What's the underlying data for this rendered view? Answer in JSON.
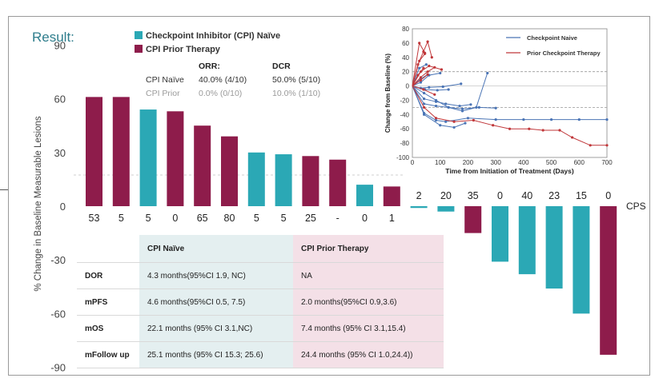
{
  "title": "Result:",
  "legend": [
    {
      "label": "Checkpoint Inhibitor (CPI) Naïve",
      "color": "#2ba8b5"
    },
    {
      "label": "CPI Prior Therapy",
      "color": "#8e1c4b"
    }
  ],
  "response_table": {
    "headers": [
      "ORR:",
      "DCR"
    ],
    "rows": [
      {
        "label": "CPI Naïve",
        "orr": "40.0% (4/10)",
        "dcr": "50.0% (5/10)"
      },
      {
        "label": "CPI Prior",
        "orr": "0.0% (0/10)",
        "dcr": "10.0% (1/10)"
      }
    ]
  },
  "summary_table": {
    "headers": [
      "CPI Naïve",
      "CPI Prior Therapy"
    ],
    "rows": [
      {
        "label": "DOR",
        "naive": "4.3 months(95%CI 1.9, NC)",
        "prior": "NA"
      },
      {
        "label": "mPFS",
        "naive": "4.6 months(95%CI 0.5, 7.5)",
        "prior": "2.0 months(95%CI 0.9,3.6)"
      },
      {
        "label": "mOS",
        "naive": "22.1 months (95% CI 3.1,NC)",
        "prior": "7.4 months (95% CI 3.1,15.4)"
      },
      {
        "label": "mFollow up",
        "naive": "25.1 months (95% CI 15.3; 25.6)",
        "prior": "24.4 months (95% CI 1.0,24.4))"
      }
    ]
  },
  "chart_data": [
    {
      "type": "bar",
      "subtype": "waterfall",
      "ylabel": "% Change in Baseline Measurable Lesions",
      "ylim": [
        -90,
        90
      ],
      "yticks": [
        90,
        60,
        30,
        0,
        -30,
        -60,
        -90
      ],
      "categories_label": "CPS",
      "bars": [
        {
          "cps": "53",
          "value": 61,
          "group": "CPI Prior Therapy"
        },
        {
          "cps": "5",
          "value": 61,
          "group": "CPI Prior Therapy"
        },
        {
          "cps": "5",
          "value": 54,
          "group": "Checkpoint Inhibitor (CPI) Naïve"
        },
        {
          "cps": "0",
          "value": 53,
          "group": "CPI Prior Therapy"
        },
        {
          "cps": "65",
          "value": 45,
          "group": "CPI Prior Therapy"
        },
        {
          "cps": "80",
          "value": 39,
          "group": "CPI Prior Therapy"
        },
        {
          "cps": "5",
          "value": 30,
          "group": "Checkpoint Inhibitor (CPI) Naïve"
        },
        {
          "cps": "5",
          "value": 29,
          "group": "Checkpoint Inhibitor (CPI) Naïve"
        },
        {
          "cps": "25",
          "value": 28,
          "group": "CPI Prior Therapy"
        },
        {
          "cps": "-",
          "value": 26,
          "group": "CPI Prior Therapy"
        },
        {
          "cps": "0",
          "value": 12,
          "group": "Checkpoint Inhibitor (CPI) Naïve"
        },
        {
          "cps": "1",
          "value": 11,
          "group": "CPI Prior Therapy"
        },
        {
          "cps": "2",
          "value": -1,
          "group": "Checkpoint Inhibitor (CPI) Naïve"
        },
        {
          "cps": "20",
          "value": -3,
          "group": "Checkpoint Inhibitor (CPI) Naïve"
        },
        {
          "cps": "35",
          "value": -15,
          "group": "CPI Prior Therapy"
        },
        {
          "cps": "0",
          "value": -31,
          "group": "Checkpoint Inhibitor (CPI) Naïve"
        },
        {
          "cps": "40",
          "value": -38,
          "group": "Checkpoint Inhibitor (CPI) Naïve"
        },
        {
          "cps": "23",
          "value": -46,
          "group": "Checkpoint Inhibitor (CPI) Naïve"
        },
        {
          "cps": "15",
          "value": -60,
          "group": "Checkpoint Inhibitor (CPI) Naïve"
        },
        {
          "cps": "0",
          "value": -83,
          "group": "CPI Prior Therapy"
        }
      ]
    },
    {
      "type": "line",
      "subtype": "spider",
      "xlabel": "Time from Initiation of Treatment (Days)",
      "ylabel": "Change from Baseline (%)",
      "xlim": [
        0,
        700
      ],
      "ylim": [
        -100,
        80
      ],
      "xticks": [
        0,
        100,
        200,
        300,
        400,
        500,
        600,
        700
      ],
      "yticks": [
        80,
        60,
        40,
        20,
        0,
        -20,
        -40,
        -60,
        -80,
        -100
      ],
      "reference_lines": [
        20,
        -30
      ],
      "legend_position": "top-right",
      "series": [
        {
          "name": "Checkpoint Naive",
          "color": "#4a74b5",
          "lines": [
            [
              [
                0,
                0
              ],
              [
                42,
                -40
              ],
              [
                100,
                -55
              ],
              [
                150,
                -58
              ],
              [
                190,
                -52
              ]
            ],
            [
              [
                0,
                0
              ],
              [
                42,
                -38
              ],
              [
                85,
                -48
              ],
              [
                120,
                -50
              ],
              [
                200,
                -45
              ],
              [
                300,
                -47
              ],
              [
                400,
                -47
              ],
              [
                500,
                -47
              ],
              [
                600,
                -47
              ],
              [
                700,
                -47
              ]
            ],
            [
              [
                0,
                0
              ],
              [
                42,
                -18
              ],
              [
                85,
                -22
              ],
              [
                120,
                -25
              ],
              [
                170,
                -28
              ],
              [
                210,
                -26
              ]
            ],
            [
              [
                0,
                0
              ],
              [
                42,
                -10
              ],
              [
                85,
                -20
              ],
              [
                130,
                -30
              ],
              [
                180,
                -35
              ],
              [
                230,
                -30
              ],
              [
                270,
                18
              ]
            ],
            [
              [
                0,
                0
              ],
              [
                42,
                -25
              ],
              [
                85,
                -28
              ],
              [
                130,
                -30
              ],
              [
                180,
                -32
              ],
              [
                240,
                -30
              ],
              [
                300,
                -31
              ]
            ],
            [
              [
                0,
                0
              ],
              [
                30,
                -3
              ],
              [
                60,
                -2
              ],
              [
                110,
                -1
              ],
              [
                175,
                3
              ]
            ],
            [
              [
                0,
                0
              ],
              [
                30,
                5
              ],
              [
                60,
                15
              ],
              [
                100,
                18
              ]
            ],
            [
              [
                0,
                0
              ],
              [
                30,
                10
              ],
              [
                55,
                16
              ]
            ],
            [
              [
                0,
                0
              ],
              [
                25,
                25
              ],
              [
                50,
                30
              ]
            ],
            [
              [
                0,
                0
              ],
              [
                45,
                -5
              ],
              [
                90,
                -6
              ],
              [
                130,
                -5
              ]
            ]
          ]
        },
        {
          "name": "Prior Checkpoint Therapy",
          "color": "#c0373a",
          "lines": [
            [
              [
                0,
                0
              ],
              [
                42,
                -30
              ],
              [
                85,
                -45
              ],
              [
                150,
                -50
              ],
              [
                220,
                -48
              ],
              [
                290,
                -55
              ],
              [
                350,
                -60
              ],
              [
                420,
                -60
              ],
              [
                470,
                -62
              ],
              [
                530,
                -62
              ],
              [
                575,
                -72
              ],
              [
                640,
                -83
              ],
              [
                700,
                -83
              ]
            ],
            [
              [
                0,
                0
              ],
              [
                25,
                60
              ],
              [
                45,
                46
              ]
            ],
            [
              [
                0,
                0
              ],
              [
                20,
                30
              ],
              [
                40,
                48
              ],
              [
                55,
                62
              ],
              [
                70,
                40
              ]
            ],
            [
              [
                0,
                0
              ],
              [
                30,
                20
              ],
              [
                60,
                28
              ],
              [
                105,
                23
              ]
            ],
            [
              [
                0,
                0
              ],
              [
                25,
                35
              ],
              [
                45,
                45
              ]
            ],
            [
              [
                0,
                0
              ],
              [
                20,
                15
              ],
              [
                40,
                25
              ]
            ],
            [
              [
                0,
                0
              ],
              [
                30,
                12
              ],
              [
                55,
                20
              ],
              [
                80,
                26
              ]
            ],
            [
              [
                0,
                0
              ],
              [
                30,
                8
              ],
              [
                55,
                16
              ]
            ],
            [
              [
                0,
                0
              ],
              [
                40,
                -5
              ],
              [
                80,
                -12
              ]
            ]
          ]
        }
      ]
    }
  ]
}
